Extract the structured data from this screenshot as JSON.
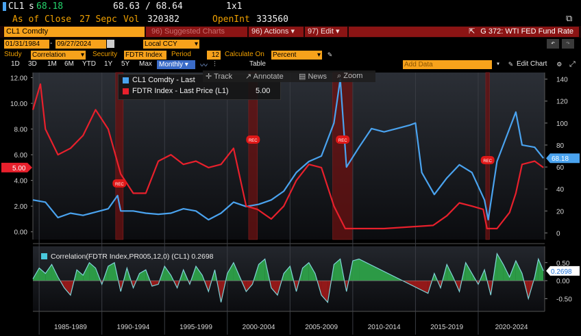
{
  "header": {
    "ticker": "CL1",
    "price_prefix": "s",
    "price": "68.18",
    "bid_ask": "68.63 / 68.64",
    "size": "1x1",
    "as_of_label": "As of Close",
    "as_of_date": "27 Sepc",
    "vol_label": "Vol",
    "vol_value": "320382",
    "openint_label": "OpenInt",
    "openint_value": "333560"
  },
  "toolbar": {
    "security_field": "CL1 Comdty",
    "suggested": "96) Suggested Charts",
    "actions": "96) Actions",
    "edit": "97) Edit",
    "graph_title": "G 372: WTI FED Fund Rate"
  },
  "range": {
    "start": "01/31/1984",
    "end": "09/27/2024",
    "currency": "Local CCY"
  },
  "study": {
    "study_label": "Study",
    "study_value": "Correlation",
    "security_label": "Security",
    "security_value": "FDTR Index",
    "period_label": "Period",
    "period_value": "12",
    "calc_label": "Calculate On",
    "calc_value": "Percent"
  },
  "periods": [
    "1D",
    "3D",
    "1M",
    "6M",
    "YTD",
    "1Y",
    "5Y",
    "Max"
  ],
  "frequency": "Monthly",
  "table_label": "Table",
  "add_data": "Add Data",
  "edit_chart": "Edit Chart",
  "tools": {
    "track": "Track",
    "annotate": "Annotate",
    "news": "News",
    "zoom": "Zoom"
  },
  "chart_data": [
    {
      "type": "line",
      "series": [
        {
          "name": "CL1 Comdty - Last",
          "axis": "right",
          "color": "#4aa3ef",
          "last_label": "68.18",
          "x": [
            1984,
            1985,
            1986,
            1987,
            1988,
            1989,
            1990,
            1990.75,
            1991,
            1992,
            1993,
            1994,
            1995,
            1996,
            1997,
            1998,
            1999,
            2000,
            2001,
            2002,
            2003,
            2004,
            2005,
            2006,
            2007,
            2008,
            2008.5,
            2009,
            2010,
            2011,
            2012,
            2013,
            2014,
            2014.5,
            2015,
            2016,
            2017,
            2018,
            2019,
            2020,
            2020.3,
            2021,
            2022,
            2022.5,
            2023,
            2024,
            2024.7
          ],
          "values": [
            30,
            28,
            14,
            18,
            16,
            19,
            22,
            34,
            20,
            20,
            18,
            17,
            18,
            22,
            20,
            12,
            18,
            28,
            24,
            26,
            30,
            38,
            55,
            65,
            70,
            100,
            140,
            60,
            78,
            95,
            92,
            95,
            98,
            100,
            55,
            35,
            50,
            62,
            55,
            30,
            12,
            65,
            95,
            110,
            80,
            78,
            68
          ]
        },
        {
          "name": "FDTR Index - Last Price (L1)",
          "axis": "left",
          "color": "#e8202c",
          "last_label": "5.00",
          "x": [
            1984,
            1984.6,
            1985,
            1986,
            1987,
            1988,
            1989,
            1990,
            1991,
            1992,
            1993,
            1994,
            1995,
            1996,
            1997,
            1998,
            1999,
            2000,
            2001,
            2001.9,
            2003,
            2004,
            2005,
            2006,
            2007,
            2008,
            2008.9,
            2012,
            2015.9,
            2017,
            2018,
            2019,
            2019.9,
            2020.2,
            2021,
            2022,
            2022.5,
            2023,
            2024,
            2024.7
          ],
          "values": [
            9.5,
            11.5,
            8.0,
            6.0,
            6.5,
            7.5,
            9.5,
            8.0,
            4.5,
            3.0,
            3.0,
            5.5,
            6.0,
            5.25,
            5.5,
            5.0,
            5.25,
            6.5,
            2.0,
            1.75,
            1.0,
            2.0,
            4.0,
            5.25,
            5.0,
            2.0,
            0.25,
            0.25,
            0.5,
            1.25,
            2.25,
            2.0,
            1.75,
            0.25,
            0.25,
            1.5,
            3.0,
            5.25,
            5.5,
            5.0
          ]
        }
      ],
      "left_axis": {
        "ticks": [
          "0.00",
          "2.00",
          "4.00",
          "6.00",
          "8.00",
          "10.00",
          "12.00"
        ],
        "ylim": [
          -0.6,
          12.4
        ]
      },
      "right_axis": {
        "ticks": [
          "0",
          "20",
          "40",
          "60",
          "80",
          "100",
          "120",
          "140"
        ],
        "ylim": [
          -6,
          146
        ]
      },
      "legend": [
        {
          "label": "CL1 Comdty - Last",
          "value": "68.18",
          "color": "#4aa3ef"
        },
        {
          "label": "FDTR Index - Last Price (L1)",
          "value": "5.00",
          "color": "#e8202c"
        }
      ],
      "recessions": [
        {
          "start": 1990.6,
          "end": 1991.2,
          "label": "REC"
        },
        {
          "start": 2001.2,
          "end": 2001.9,
          "label": "REC"
        },
        {
          "start": 2007.9,
          "end": 2009.5,
          "label": "REC"
        },
        {
          "start": 2020.1,
          "end": 2020.4,
          "label": "REC"
        }
      ],
      "x_range": [
        1984,
        2024.8
      ]
    },
    {
      "type": "area",
      "series": [
        {
          "name": "Correlation(FDTR Index,PR005,12,0) (CL1)",
          "color": "#2fa84a",
          "last_label": "0.2698",
          "x": [
            1984,
            1984.5,
            1985,
            1985.5,
            1986,
            1986.5,
            1987,
            1987.5,
            1988,
            1988.5,
            1989,
            1989.5,
            1990,
            1990.5,
            1991,
            1991.5,
            1992,
            1992.5,
            1993,
            1993.5,
            1994,
            1994.5,
            1995,
            1995.5,
            1996,
            1996.5,
            1997,
            1997.5,
            1998,
            1998.5,
            1999,
            1999.5,
            2000,
            2000.5,
            2001,
            2001.5,
            2002,
            2002.5,
            2003,
            2003.5,
            2004,
            2004.5,
            2005,
            2005.5,
            2006,
            2006.5,
            2007,
            2007.5,
            2008,
            2008.5,
            2009,
            2009.5,
            2010,
            2015.5,
            2016,
            2016.5,
            2017,
            2017.5,
            2018,
            2018.5,
            2019,
            2019.5,
            2020,
            2020.5,
            2021,
            2021.5,
            2022,
            2022.5,
            2023,
            2023.5,
            2024,
            2024.3,
            2024.7
          ],
          "values": [
            0.05,
            0.35,
            0.2,
            0.45,
            0.1,
            -0.2,
            -0.4,
            0.3,
            0.15,
            0.5,
            0.35,
            -0.1,
            0.4,
            0.5,
            -0.3,
            0.35,
            -0.2,
            0.2,
            0.3,
            -0.15,
            -0.1,
            0.4,
            0.15,
            -0.2,
            0.3,
            -0.1,
            0.4,
            0.15,
            -0.3,
            0.3,
            -0.6,
            0.2,
            0.5,
            0.1,
            -0.3,
            -0.1,
            0.45,
            0.6,
            -0.2,
            -0.4,
            0.2,
            0.4,
            -0.3,
            0.35,
            0.5,
            0.2,
            -0.4,
            -0.6,
            0.45,
            0.6,
            -0.3,
            0.55,
            0.6,
            -0.35,
            0.2,
            -0.2,
            0.45,
            0.1,
            -0.3,
            0.5,
            0.2,
            -0.1,
            0.3,
            -0.4,
            0.75,
            0.45,
            0.1,
            0.55,
            0.2,
            -0.5,
            0.1,
            0.6,
            0.2698
          ]
        }
      ],
      "title": "Correlation(FDTR Index,PR005,12,0) (CL1)",
      "value_label": "0.2698",
      "right_axis": {
        "ticks": [
          "0.50",
          "0.00",
          "-0.50"
        ],
        "ylim": [
          -0.85,
          0.95
        ]
      },
      "x_ticks": [
        "1985-1989",
        "1990-1994",
        "1995-1999",
        "2000-2004",
        "2005-2009",
        "2010-2014",
        "2015-2019",
        "2020-2024"
      ]
    }
  ]
}
